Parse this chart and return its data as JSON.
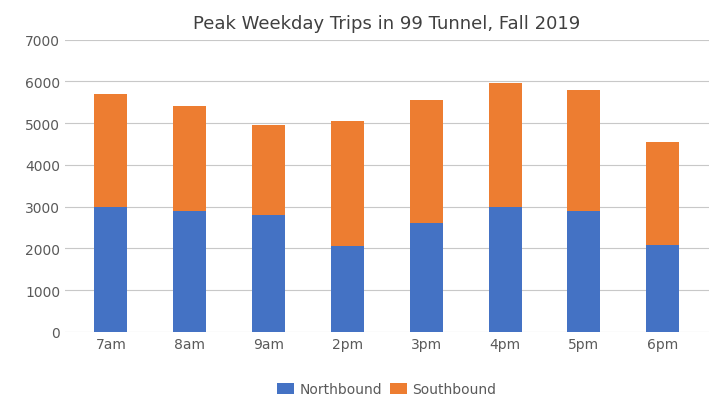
{
  "title": "Peak Weekday Trips in 99 Tunnel, Fall 2019",
  "categories": [
    "7am",
    "8am",
    "9am",
    "2pm",
    "3pm",
    "4pm",
    "5pm",
    "6pm"
  ],
  "northbound": [
    3000,
    2900,
    2800,
    2050,
    2600,
    3000,
    2900,
    2075
  ],
  "southbound": [
    2700,
    2500,
    2150,
    3000,
    2950,
    2950,
    2900,
    2475
  ],
  "northbound_color": "#4472c4",
  "southbound_color": "#ed7d31",
  "northbound_label": "Northbound",
  "southbound_label": "Southbound",
  "ylim": [
    0,
    7000
  ],
  "yticks": [
    0,
    1000,
    2000,
    3000,
    4000,
    5000,
    6000,
    7000
  ],
  "background_color": "#ffffff",
  "title_fontsize": 13,
  "tick_fontsize": 10,
  "legend_fontsize": 10,
  "bar_width": 0.42,
  "grid_color": "#c8c8c8",
  "title_color": "#404040",
  "tick_color": "#5a5a5a"
}
